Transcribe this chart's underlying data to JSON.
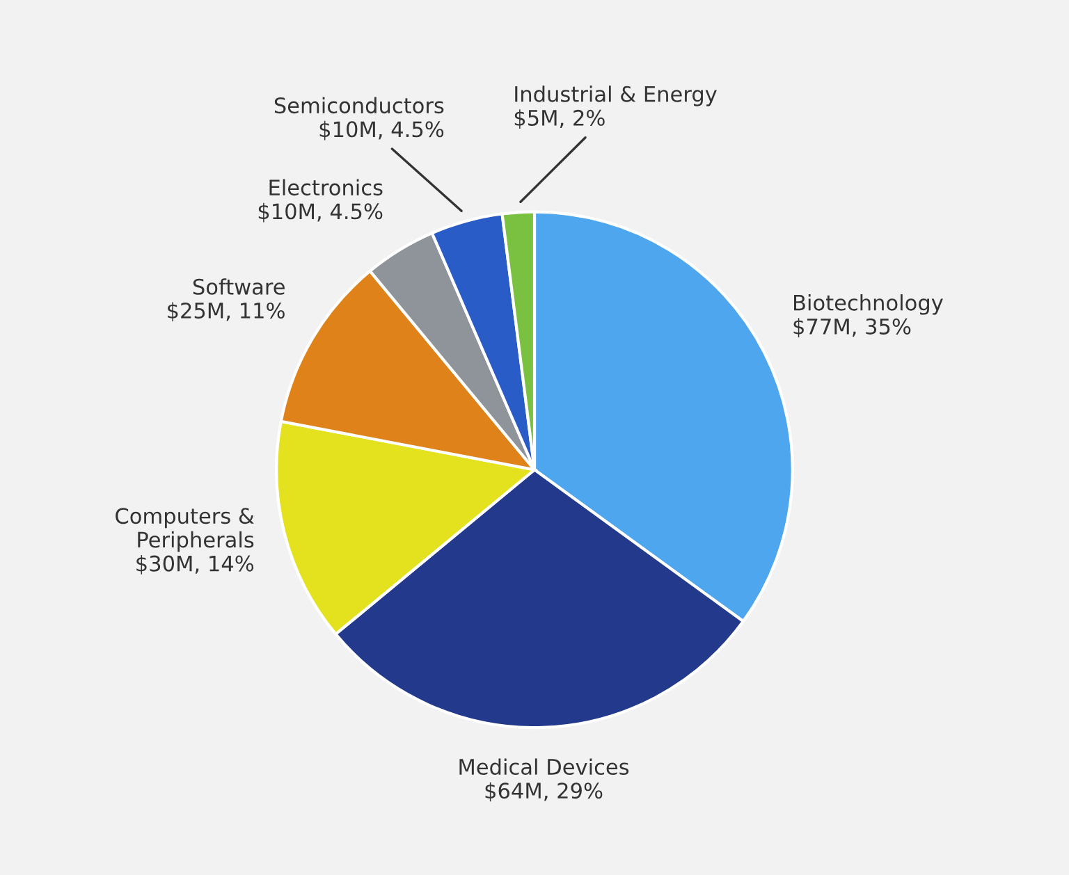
{
  "chart_data": {
    "type": "pie",
    "categories": [
      "Biotechnology",
      "Medical Devices",
      "Computers &\nPeripherals",
      "Software",
      "Electronics",
      "Semiconductors",
      "Industrial & Energy"
    ],
    "values": [
      35,
      29,
      14,
      11,
      4.5,
      4.5,
      2
    ],
    "value_labels": [
      "$77M, 35%",
      "$64M, 29%",
      "$30M, 14%",
      "$25M, 11%",
      "$10M, 4.5%",
      "$10M, 4.5%",
      "$5M, 2%"
    ],
    "colors": [
      "#4da6ee",
      "#233a8c",
      "#e4e21f",
      "#e0821a",
      "#8e9499",
      "#2a5cc8",
      "#7ac142"
    ],
    "legend": false
  }
}
